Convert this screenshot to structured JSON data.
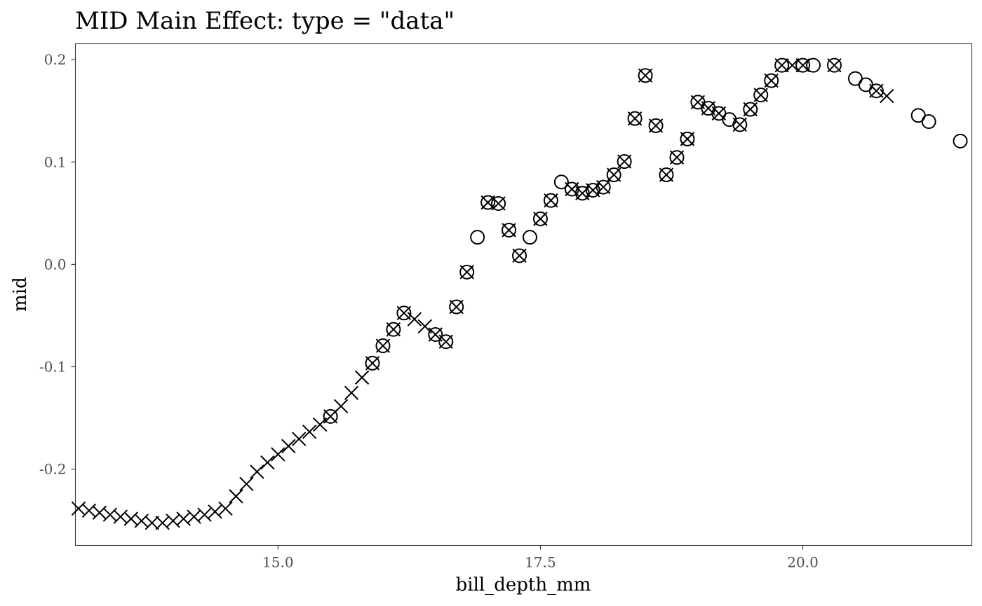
{
  "chart_data": {
    "type": "scatter",
    "title": "MID Main Effect: type = \"data\"",
    "xlabel": "bill_depth_mm",
    "ylabel": "mid",
    "xlim": [
      13.07,
      21.61
    ],
    "ylim": [
      -0.2745,
      0.2155
    ],
    "xticks": [
      15.0,
      17.5,
      20.0
    ],
    "xtick_labels": [
      "15.0",
      "17.5",
      "20.0"
    ],
    "yticks": [
      -0.2,
      -0.1,
      0.0,
      0.1,
      0.2
    ],
    "ytick_labels": [
      "-0.2",
      "-0.1",
      "0.0",
      "0.1",
      "0.2"
    ],
    "grid": false,
    "series": [
      {
        "marker": "cross",
        "points": [
          [
            13.1,
            -0.2385
          ],
          [
            13.2,
            -0.2405
          ],
          [
            13.3,
            -0.2425
          ],
          [
            13.4,
            -0.2445
          ],
          [
            13.5,
            -0.2465
          ],
          [
            13.6,
            -0.2485
          ],
          [
            13.7,
            -0.2505
          ],
          [
            13.8,
            -0.2525
          ],
          [
            13.9,
            -0.2525
          ],
          [
            14.0,
            -0.2505
          ],
          [
            14.1,
            -0.2485
          ],
          [
            14.2,
            -0.2465
          ],
          [
            14.3,
            -0.2445
          ],
          [
            14.4,
            -0.2415
          ],
          [
            14.5,
            -0.2385
          ],
          [
            14.6,
            -0.2265
          ],
          [
            14.7,
            -0.2145
          ],
          [
            14.8,
            -0.2025
          ],
          [
            14.9,
            -0.1935
          ],
          [
            15.0,
            -0.1855
          ],
          [
            15.1,
            -0.1775
          ],
          [
            15.2,
            -0.1705
          ],
          [
            15.3,
            -0.1635
          ],
          [
            15.4,
            -0.1565
          ],
          [
            15.5,
            -0.1485
          ],
          [
            15.6,
            -0.1385
          ],
          [
            15.7,
            -0.1255
          ],
          [
            15.8,
            -0.1105
          ],
          [
            15.9,
            -0.0965
          ],
          [
            16.0,
            -0.0795
          ],
          [
            16.1,
            -0.0635
          ],
          [
            16.2,
            -0.0475
          ],
          [
            16.3,
            -0.0535
          ],
          [
            16.4,
            -0.0605
          ],
          [
            16.5,
            -0.0685
          ],
          [
            16.6,
            -0.0755
          ],
          [
            16.7,
            -0.0415
          ],
          [
            16.8,
            -0.0075
          ],
          [
            17.0,
            0.0605
          ],
          [
            17.1,
            0.0595
          ],
          [
            17.2,
            0.0335
          ],
          [
            17.3,
            0.0085
          ],
          [
            17.5,
            0.0445
          ],
          [
            17.6,
            0.0625
          ],
          [
            17.8,
            0.0735
          ],
          [
            17.9,
            0.0695
          ],
          [
            18.0,
            0.0725
          ],
          [
            18.1,
            0.0755
          ],
          [
            18.2,
            0.0875
          ],
          [
            18.3,
            0.1005
          ],
          [
            18.4,
            0.1425
          ],
          [
            18.5,
            0.1845
          ],
          [
            18.6,
            0.1355
          ],
          [
            18.7,
            0.0875
          ],
          [
            18.8,
            0.1045
          ],
          [
            18.9,
            0.1225
          ],
          [
            19.0,
            0.1585
          ],
          [
            19.1,
            0.1525
          ],
          [
            19.2,
            0.1475
          ],
          [
            19.4,
            0.1365
          ],
          [
            19.5,
            0.1515
          ],
          [
            19.6,
            0.1655
          ],
          [
            19.7,
            0.1795
          ],
          [
            19.8,
            0.1945
          ],
          [
            19.9,
            0.1945
          ],
          [
            20.0,
            0.1945
          ],
          [
            20.3,
            0.1945
          ],
          [
            20.7,
            0.1695
          ],
          [
            20.8,
            0.1645
          ]
        ]
      },
      {
        "marker": "circle",
        "points": [
          [
            15.5,
            -0.1485
          ],
          [
            15.9,
            -0.0965
          ],
          [
            16.0,
            -0.0795
          ],
          [
            16.1,
            -0.0635
          ],
          [
            16.2,
            -0.0475
          ],
          [
            16.5,
            -0.0685
          ],
          [
            16.6,
            -0.0755
          ],
          [
            16.7,
            -0.0415
          ],
          [
            16.8,
            -0.0075
          ],
          [
            16.9,
            0.0265
          ],
          [
            17.0,
            0.0605
          ],
          [
            17.1,
            0.0595
          ],
          [
            17.2,
            0.0335
          ],
          [
            17.3,
            0.0085
          ],
          [
            17.4,
            0.0265
          ],
          [
            17.5,
            0.0445
          ],
          [
            17.6,
            0.0625
          ],
          [
            17.7,
            0.0805
          ],
          [
            17.8,
            0.0735
          ],
          [
            17.9,
            0.0695
          ],
          [
            18.0,
            0.0725
          ],
          [
            18.1,
            0.0755
          ],
          [
            18.2,
            0.0875
          ],
          [
            18.3,
            0.1005
          ],
          [
            18.4,
            0.1425
          ],
          [
            18.5,
            0.1845
          ],
          [
            18.6,
            0.1355
          ],
          [
            18.7,
            0.0875
          ],
          [
            18.8,
            0.1045
          ],
          [
            18.9,
            0.1225
          ],
          [
            19.0,
            0.1585
          ],
          [
            19.1,
            0.1525
          ],
          [
            19.2,
            0.1475
          ],
          [
            19.3,
            0.1415
          ],
          [
            19.4,
            0.1365
          ],
          [
            19.5,
            0.1515
          ],
          [
            19.6,
            0.1655
          ],
          [
            19.7,
            0.1795
          ],
          [
            19.8,
            0.1945
          ],
          [
            20.0,
            0.1945
          ],
          [
            20.1,
            0.1945
          ],
          [
            20.3,
            0.1945
          ],
          [
            20.5,
            0.1815
          ],
          [
            20.6,
            0.1755
          ],
          [
            20.7,
            0.1695
          ],
          [
            21.1,
            0.1455
          ],
          [
            21.2,
            0.1395
          ],
          [
            21.5,
            0.1205
          ]
        ]
      }
    ]
  }
}
